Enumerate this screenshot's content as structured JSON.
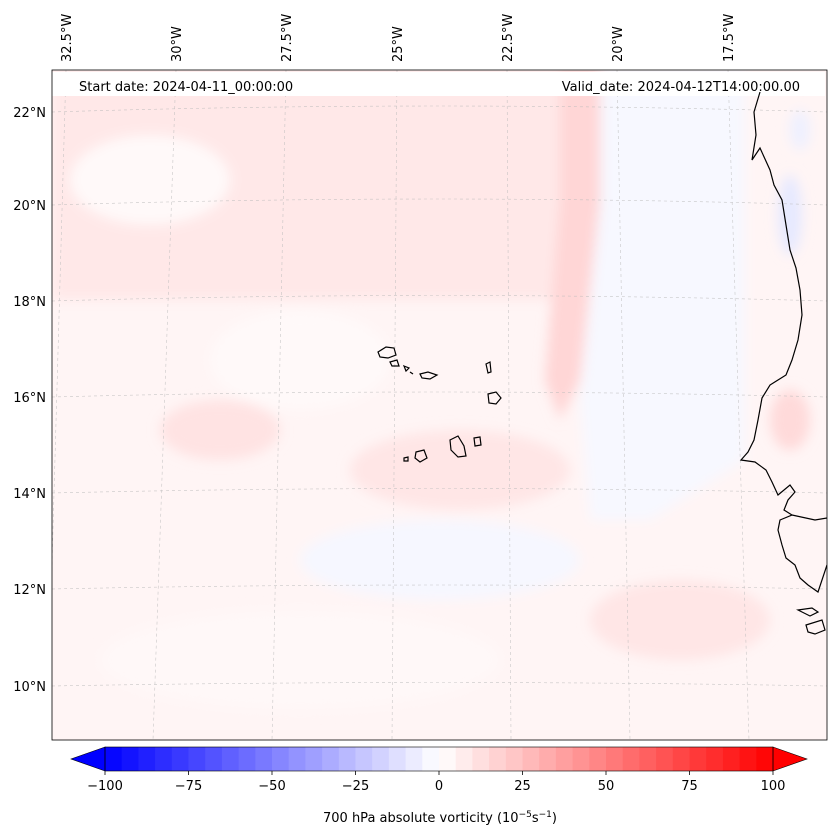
{
  "map": {
    "start_label": "Start date: 2024-04-11_00:00:00",
    "valid_label": "Valid_date: 2024-04-12T14:00:00.00",
    "lon_labels": [
      "32.5°W",
      "30°W",
      "27.5°W",
      "25°W",
      "22.5°W",
      "20°W",
      "17.5°W"
    ],
    "lat_labels": [
      "22°N",
      "20°N",
      "18°N",
      "16°N",
      "14°N",
      "12°N",
      "10°N"
    ]
  },
  "colorbar": {
    "label_main": "700 hPa absolute vorticity (10",
    "label_exp1": "−5",
    "label_mid": "s",
    "label_exp2": "−1",
    "label_end": ")",
    "ticks": [
      "−100",
      "−75",
      "−50",
      "−25",
      "0",
      "25",
      "50",
      "75",
      "100"
    ],
    "min": -100,
    "max": 100,
    "step": 5
  },
  "colors": {
    "neg_extreme": "#0000ff",
    "pos_extreme": "#ff0000",
    "coast": "#000000",
    "grid": "#bbbbbb"
  }
}
